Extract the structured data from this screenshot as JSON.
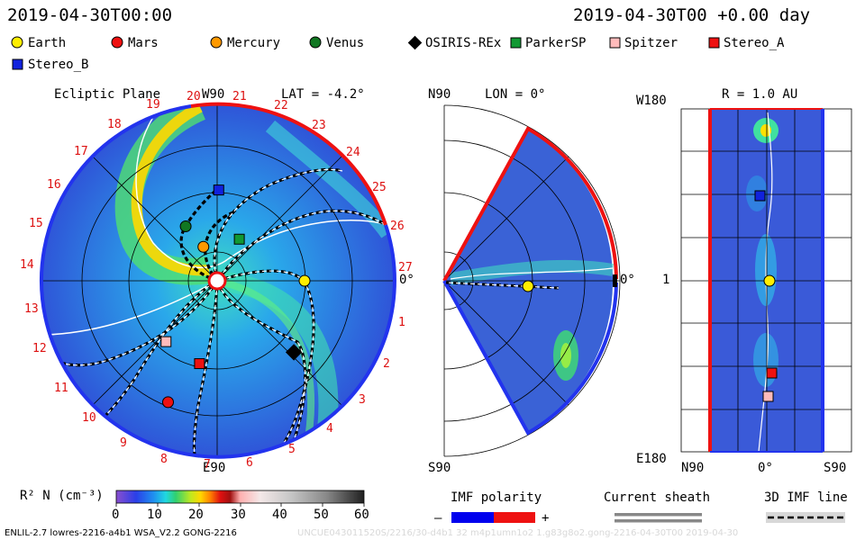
{
  "header": {
    "left_time": "2019-04-30T00:00",
    "right_time": "2019-04-30T00 +0.00 day"
  },
  "legend_items": [
    {
      "label": "Earth",
      "color": "#ffee00",
      "shape": "circle"
    },
    {
      "label": "Mars",
      "color": "#ee1111",
      "shape": "circle"
    },
    {
      "label": "Mercury",
      "color": "#ff9900",
      "shape": "circle"
    },
    {
      "label": "Venus",
      "color": "#117722",
      "shape": "circle"
    },
    {
      "label": "OSIRIS-REx",
      "color": "#000000",
      "shape": "diamond"
    },
    {
      "label": "ParkerSP",
      "color": "#119933",
      "shape": "square"
    },
    {
      "label": "Spitzer",
      "color": "#ffbbbb",
      "shape": "square"
    },
    {
      "label": "Stereo_A",
      "color": "#ee1111",
      "shape": "square"
    },
    {
      "label": "Stereo_B",
      "color": "#1122dd",
      "shape": "square"
    }
  ],
  "chart_data": [
    {
      "type": "heatmap",
      "panel": "Ecliptic Plane",
      "labels": {
        "title": "Ecliptic Plane",
        "lat": "LAT = -4.2°",
        "top": "W90",
        "bottom": "E90",
        "right": "0°"
      },
      "lat_deg": -4.2,
      "carrington_sectors": [
        "1",
        "2",
        "3",
        "4",
        "5",
        "6",
        "7",
        "8",
        "9",
        "10",
        "11",
        "12",
        "13",
        "14",
        "15",
        "16",
        "17",
        "18",
        "19",
        "20",
        "21",
        "22",
        "23",
        "24",
        "25",
        "26",
        "27"
      ],
      "bodies": [
        {
          "name": "Earth",
          "angle_deg": 0,
          "r_au": 1.0
        },
        {
          "name": "Venus",
          "angle_deg": 120,
          "r_au": 0.72
        },
        {
          "name": "Mercury",
          "angle_deg": 112,
          "r_au": 0.42
        },
        {
          "name": "ParkerSP",
          "angle_deg": 62,
          "r_au": 0.54
        },
        {
          "name": "Stereo_B",
          "angle_deg": 89,
          "r_au": 1.04
        },
        {
          "name": "OSIRIS-REx",
          "angle_deg": -43,
          "r_au": 1.2
        },
        {
          "name": "Spitzer",
          "angle_deg": -130,
          "r_au": 0.91
        },
        {
          "name": "Stereo_A",
          "angle_deg": -102,
          "r_au": 0.97
        },
        {
          "name": "Mars",
          "angle_deg": -112,
          "r_au": 1.5
        }
      ]
    },
    {
      "type": "heatmap",
      "panel": "Meridional Plane",
      "labels": {
        "lon": "LON = 0°",
        "top": "N90",
        "bottom": "S90",
        "right": "0°"
      },
      "lon_deg": 0
    },
    {
      "type": "heatmap",
      "panel": "Sphere at 1 AU",
      "labels": {
        "r": "R = 1.0 AU",
        "top": "W180",
        "middle": "1",
        "bottom": "E180",
        "x_left": "N90",
        "x_mid": "0°",
        "x_right": "S90"
      },
      "r_au": 1.0,
      "bodies": [
        {
          "name": "Stereo_B",
          "lon_deg": 90,
          "lat_deg": 5
        },
        {
          "name": "Earth",
          "lon_deg": 0,
          "lat_deg": -4.2
        },
        {
          "name": "Stereo_A",
          "lon_deg": -103,
          "lat_deg": -4
        },
        {
          "name": "Spitzer",
          "lon_deg": -130,
          "lat_deg": -2
        }
      ]
    },
    {
      "type": "bar",
      "panel": "colorbar",
      "label": "R² N (cm⁻³)",
      "ticks": [
        "0",
        "10",
        "20",
        "30",
        "40",
        "50",
        "60"
      ],
      "range": [
        0,
        60
      ]
    }
  ],
  "keys": {
    "imf_title": "IMF polarity",
    "imf_minus": "–",
    "imf_plus": "+",
    "sheath_title": "Current sheath",
    "imf3d_title": "3D IMF line"
  },
  "footer": {
    "left": "ENLIL-2.7 lowres-2216-a4b1 WSA_V2.2 GONG-2216",
    "right": "UNCUE043011520S/2216/30-d4b1 32 m4p1umn1o2 1.g83g8o2.gong-2216-04-30T00     2019-04-30"
  }
}
